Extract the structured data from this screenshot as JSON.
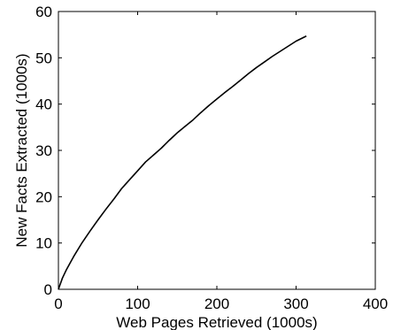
{
  "chart_data": {
    "type": "line",
    "title": "",
    "xlabel": "Web Pages Retrieved (1000s)",
    "ylabel": "New Facts Extracted (1000s)",
    "xlim": [
      0,
      400
    ],
    "ylim": [
      0,
      60
    ],
    "xticks": [
      "0",
      "100",
      "200",
      "300",
      "400"
    ],
    "yticks": [
      "0",
      "10",
      "20",
      "30",
      "40",
      "50",
      "60"
    ],
    "grid": false,
    "legend": "none",
    "series": [
      {
        "color": "#000000",
        "x": [
          0,
          5,
          10,
          20,
          30,
          40,
          50,
          60,
          70,
          80,
          90,
          100,
          110,
          120,
          130,
          140,
          150,
          160,
          170,
          180,
          190,
          200,
          210,
          220,
          230,
          240,
          250,
          260,
          270,
          280,
          290,
          300,
          313
        ],
        "y": [
          0,
          2.4,
          4.2,
          7.3,
          10.1,
          12.6,
          15.0,
          17.3,
          19.5,
          21.8,
          23.7,
          25.6,
          27.5,
          29.0,
          30.5,
          32.2,
          33.8,
          35.2,
          36.6,
          38.2,
          39.7,
          41.1,
          42.5,
          43.8,
          45.2,
          46.6,
          47.9,
          49.1,
          50.3,
          51.4,
          52.5,
          53.6,
          54.7
        ]
      }
    ]
  }
}
